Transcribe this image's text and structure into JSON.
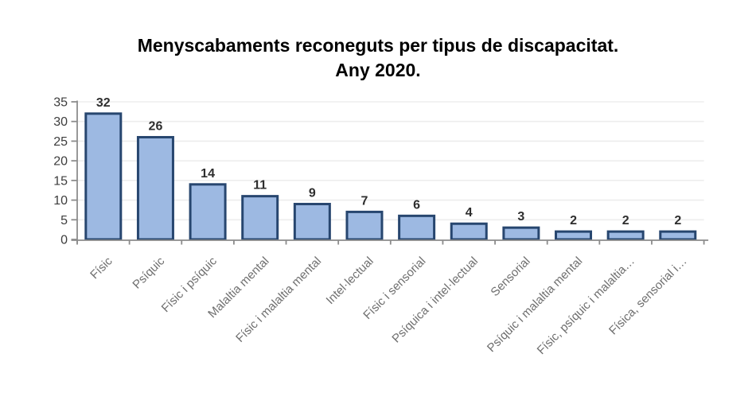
{
  "page": {
    "background_color": "#ffffff"
  },
  "chart_data": {
    "type": "bar",
    "title": "Menyscabaments reconeguts per tipus de discapacitat. Any 2020.",
    "title_lines": [
      "Menyscabaments reconeguts per tipus de discapacitat.",
      "Any 2020."
    ],
    "categories": [
      "Físic",
      "Psíquic",
      "Físic i psíquic",
      "Malaltia mental",
      "Físic i malaltia mental",
      "Intel·lectual",
      "Físic i sensorial",
      "Psíquica i intel·lectual",
      "Sensorial",
      "Psíquic i malaltia mental",
      "Físic, psíquic i malaltia…",
      "Física, sensorial i…"
    ],
    "values": [
      32,
      26,
      14,
      11,
      9,
      7,
      6,
      4,
      3,
      2,
      2,
      2
    ],
    "value_labels": [
      "32",
      "26",
      "14",
      "11",
      "9",
      "7",
      "6",
      "4",
      "3",
      "2",
      "2",
      "2"
    ],
    "xlabel": "",
    "ylabel": "",
    "ylim": [
      0,
      35
    ],
    "yticks": [
      0,
      5,
      10,
      15,
      20,
      25,
      30,
      35
    ],
    "grid": "horizontal",
    "legend": "none",
    "bar_labels_shown": true,
    "category_label_rotation_deg": -45,
    "colors": {
      "bar_fill": "#9db9e2",
      "bar_border": "#27466f",
      "gridline": "#ededed",
      "axis": "#8c8c8c",
      "value_label": "#2e2e2e",
      "y_tick_label": "#3d3d3d",
      "category_label": "#6f6f6f",
      "title": "#000000"
    }
  }
}
